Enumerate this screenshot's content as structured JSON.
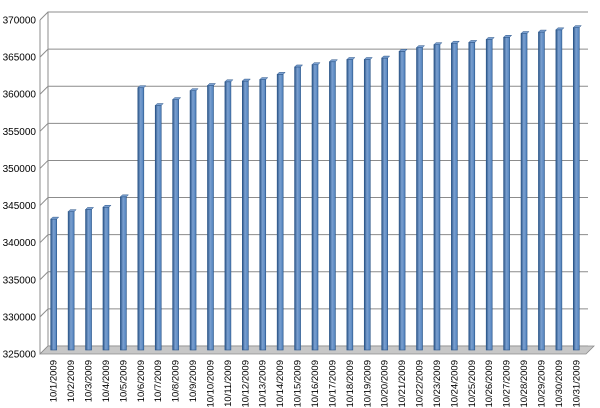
{
  "chart_data": {
    "type": "bar",
    "title": "",
    "xlabel": "",
    "ylabel": "",
    "ylim": [
      325000,
      370000
    ],
    "ytick_step": 5000,
    "yticks": [
      "325000",
      "330000",
      "335000",
      "340000",
      "345000",
      "350000",
      "355000",
      "360000",
      "365000",
      "370000"
    ],
    "grid": "horizontal",
    "legend": "none",
    "categories": [
      "10/1/2009",
      "10/2/2009",
      "10/3/2009",
      "10/4/2009",
      "10/5/2009",
      "10/6/2009",
      "10/7/2009",
      "10/8/2009",
      "10/9/2009",
      "10/10/2009",
      "10/11/2009",
      "10/12/2009",
      "10/13/2009",
      "10/14/2009",
      "10/15/2009",
      "10/16/2009",
      "10/17/2009",
      "10/18/2009",
      "10/19/2009",
      "10/20/2009",
      "10/21/2009",
      "10/22/2009",
      "10/23/2009",
      "10/24/2009",
      "10/25/2009",
      "10/26/2009",
      "10/27/2009",
      "10/28/2009",
      "10/29/2009",
      "10/30/2009",
      "10/31/2009"
    ],
    "values": [
      342500,
      343500,
      343800,
      344100,
      345500,
      360200,
      357800,
      358600,
      359800,
      360500,
      361000,
      361100,
      361300,
      362000,
      363000,
      363300,
      363700,
      364000,
      364000,
      364200,
      365100,
      365600,
      366000,
      366200,
      366300,
      366700,
      367000,
      367500,
      367700,
      368000,
      368300
    ],
    "colors": {
      "bar": "#4f81bd",
      "bar_edge": "#2a5487",
      "bar_highlight": "#7ba0d0",
      "grid": "#8c8c8c",
      "axis": "#8c8c8c",
      "floor": "#c7c7c7"
    }
  }
}
